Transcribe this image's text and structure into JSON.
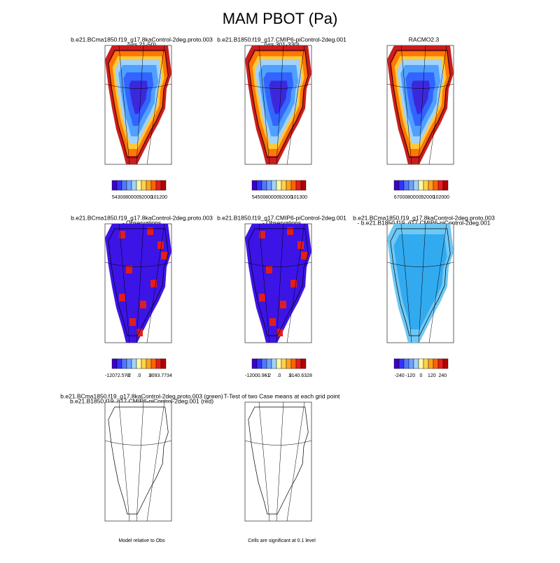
{
  "title": "MAM PBOT (Pa)",
  "panels": [
    {
      "title": [
        "b.e21.BCma1850.f19_g17.8kaControl-2deg.proto.003",
        "(yrs 21-50)"
      ],
      "colorbar": [
        "54300",
        "80000",
        "92000",
        "101200"
      ]
    },
    {
      "title": [
        "b.e21.B1850.f19_g17.CMIP6-piControl-2deg.001",
        "(yrs 301-330)"
      ],
      "colorbar": [
        "54500",
        "80000",
        "92000",
        "101300"
      ]
    },
    {
      "title": [
        "RACMO2.3"
      ],
      "colorbar": [
        "67000",
        "80000",
        "92000",
        "102000"
      ]
    },
    {
      "title": [
        "b.e21.BCma1850.f19_g17.8kaControl-2deg.proto.003",
        "- Observations"
      ],
      "colorbar": [
        "-12072.578",
        "-.2",
        ".0",
        ".2",
        "9093.7734"
      ]
    },
    {
      "title": [
        "b.e21.B1850.f19_g17.CMIP6-piControl-2deg.001",
        "- Observations"
      ],
      "colorbar": [
        "-12000.961",
        "-.2",
        ".0",
        ".2",
        "9140.6328"
      ]
    },
    {
      "title": [
        "b.e21.BCma1850.f19_g17.8kaControl-2deg.proto.003",
        "- b.e21.B1850.f19_g17.CMIP6-piControl-2deg.001"
      ],
      "colorbar": [
        "-240",
        "-120",
        "0",
        "120",
        "240"
      ]
    },
    {
      "title": [
        "b.e21.BCma1850.f19_g17.8kaControl-2deg.proto.003 (green)",
        "b.e21.B1850.f19_g17.CMIP6-piControl-2deg.001 (red)"
      ],
      "note": "Model relative to Obs"
    },
    {
      "title": [
        "T-Test of two Case means at each grid point"
      ],
      "note": "Cells are significant at 0.1 level"
    }
  ]
}
